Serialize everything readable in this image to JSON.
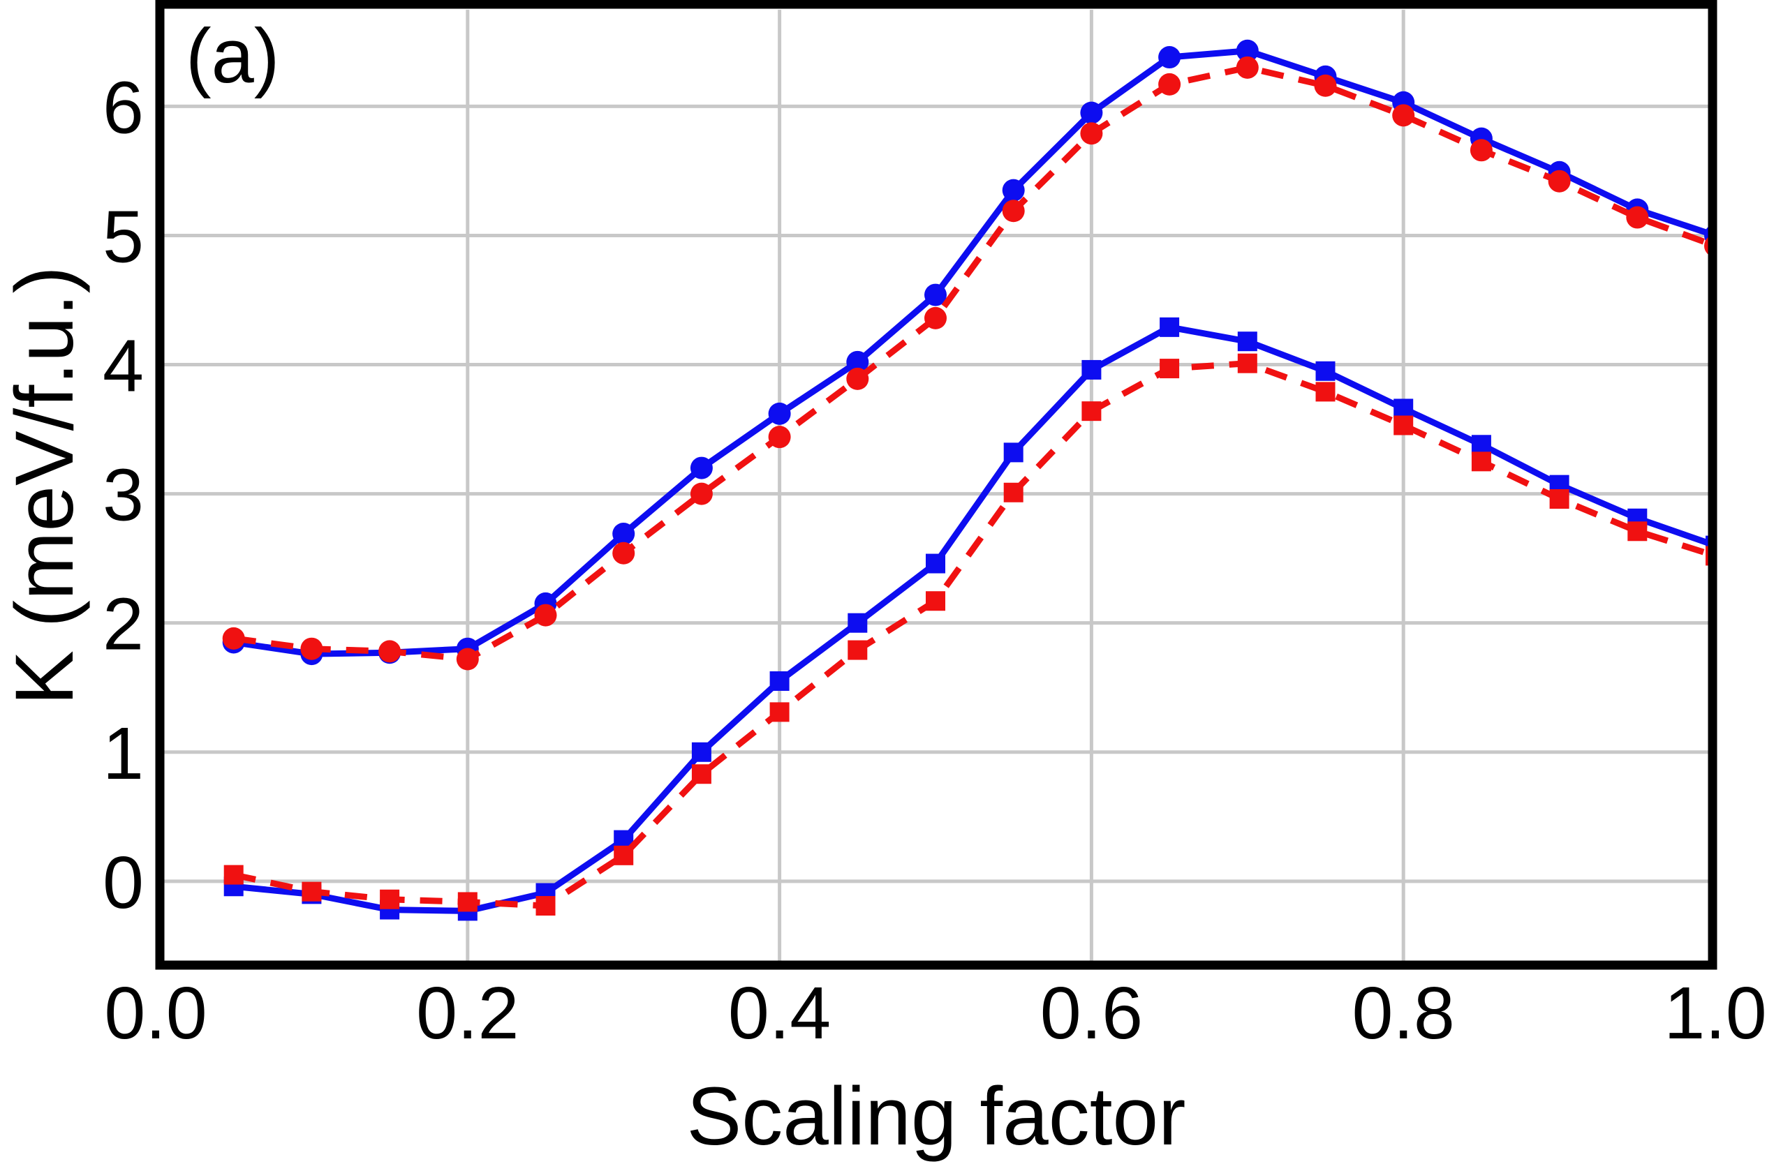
{
  "chart_data": {
    "type": "line",
    "panel_label": "(a)",
    "xlabel": "Scaling factor",
    "ylabel": "K (meV/f.u.)",
    "xlim": [
      0.0,
      1.0
    ],
    "ylim": [
      -0.66,
      6.78
    ],
    "grid": {
      "on": true,
      "color": "#c8c8c8",
      "x_lines": [
        0.2,
        0.4,
        0.6,
        0.8
      ],
      "y_lines": [
        0,
        1,
        2,
        3,
        4,
        5,
        6
      ]
    },
    "frame_color": "#000000",
    "legend": "none",
    "x_ticks": {
      "values": [
        0.0,
        0.2,
        0.4,
        0.6,
        0.8,
        1.0
      ],
      "labels": [
        "0.0",
        "0.2",
        "0.4",
        "0.6",
        "0.8",
        "1.0"
      ]
    },
    "y_ticks": {
      "values": [
        0,
        1,
        2,
        3,
        4,
        5,
        6
      ],
      "labels": [
        "0",
        "1",
        "2",
        "3",
        "4",
        "5",
        "6"
      ]
    },
    "x": [
      0.05,
      0.1,
      0.15,
      0.2,
      0.25,
      0.3,
      0.35,
      0.4,
      0.45,
      0.5,
      0.55,
      0.6,
      0.65,
      0.7,
      0.75,
      0.8,
      0.85,
      0.9,
      0.95,
      1.0
    ],
    "series": [
      {
        "id": "upper-blue-solid-circles",
        "color": "#0d0df0",
        "line": "solid",
        "marker": "circle",
        "values": [
          1.85,
          1.76,
          1.77,
          1.8,
          2.15,
          2.69,
          3.2,
          3.62,
          4.02,
          4.54,
          5.35,
          5.95,
          6.38,
          6.43,
          6.23,
          6.03,
          5.75,
          5.49,
          5.2,
          5.0
        ]
      },
      {
        "id": "upper-red-dashed-circles",
        "color": "#f01111",
        "line": "dashed",
        "marker": "circle",
        "values": [
          1.88,
          1.8,
          1.78,
          1.72,
          2.06,
          2.54,
          3.0,
          3.44,
          3.89,
          4.36,
          5.19,
          5.79,
          6.17,
          6.3,
          6.16,
          5.93,
          5.66,
          5.42,
          5.14,
          4.92
        ]
      },
      {
        "id": "lower-blue-solid-squares",
        "color": "#0d0df0",
        "line": "solid",
        "marker": "square",
        "values": [
          -0.04,
          -0.1,
          -0.22,
          -0.23,
          -0.09,
          0.32,
          1.0,
          1.55,
          2.0,
          2.46,
          3.32,
          3.96,
          4.29,
          4.18,
          3.95,
          3.66,
          3.38,
          3.07,
          2.81,
          2.6
        ]
      },
      {
        "id": "lower-red-dashed-squares",
        "color": "#f01111",
        "line": "dashed",
        "marker": "square",
        "values": [
          0.05,
          -0.08,
          -0.14,
          -0.16,
          -0.19,
          0.2,
          0.83,
          1.31,
          1.79,
          2.17,
          3.01,
          3.64,
          3.97,
          4.01,
          3.79,
          3.53,
          3.25,
          2.96,
          2.71,
          2.52
        ]
      }
    ]
  }
}
